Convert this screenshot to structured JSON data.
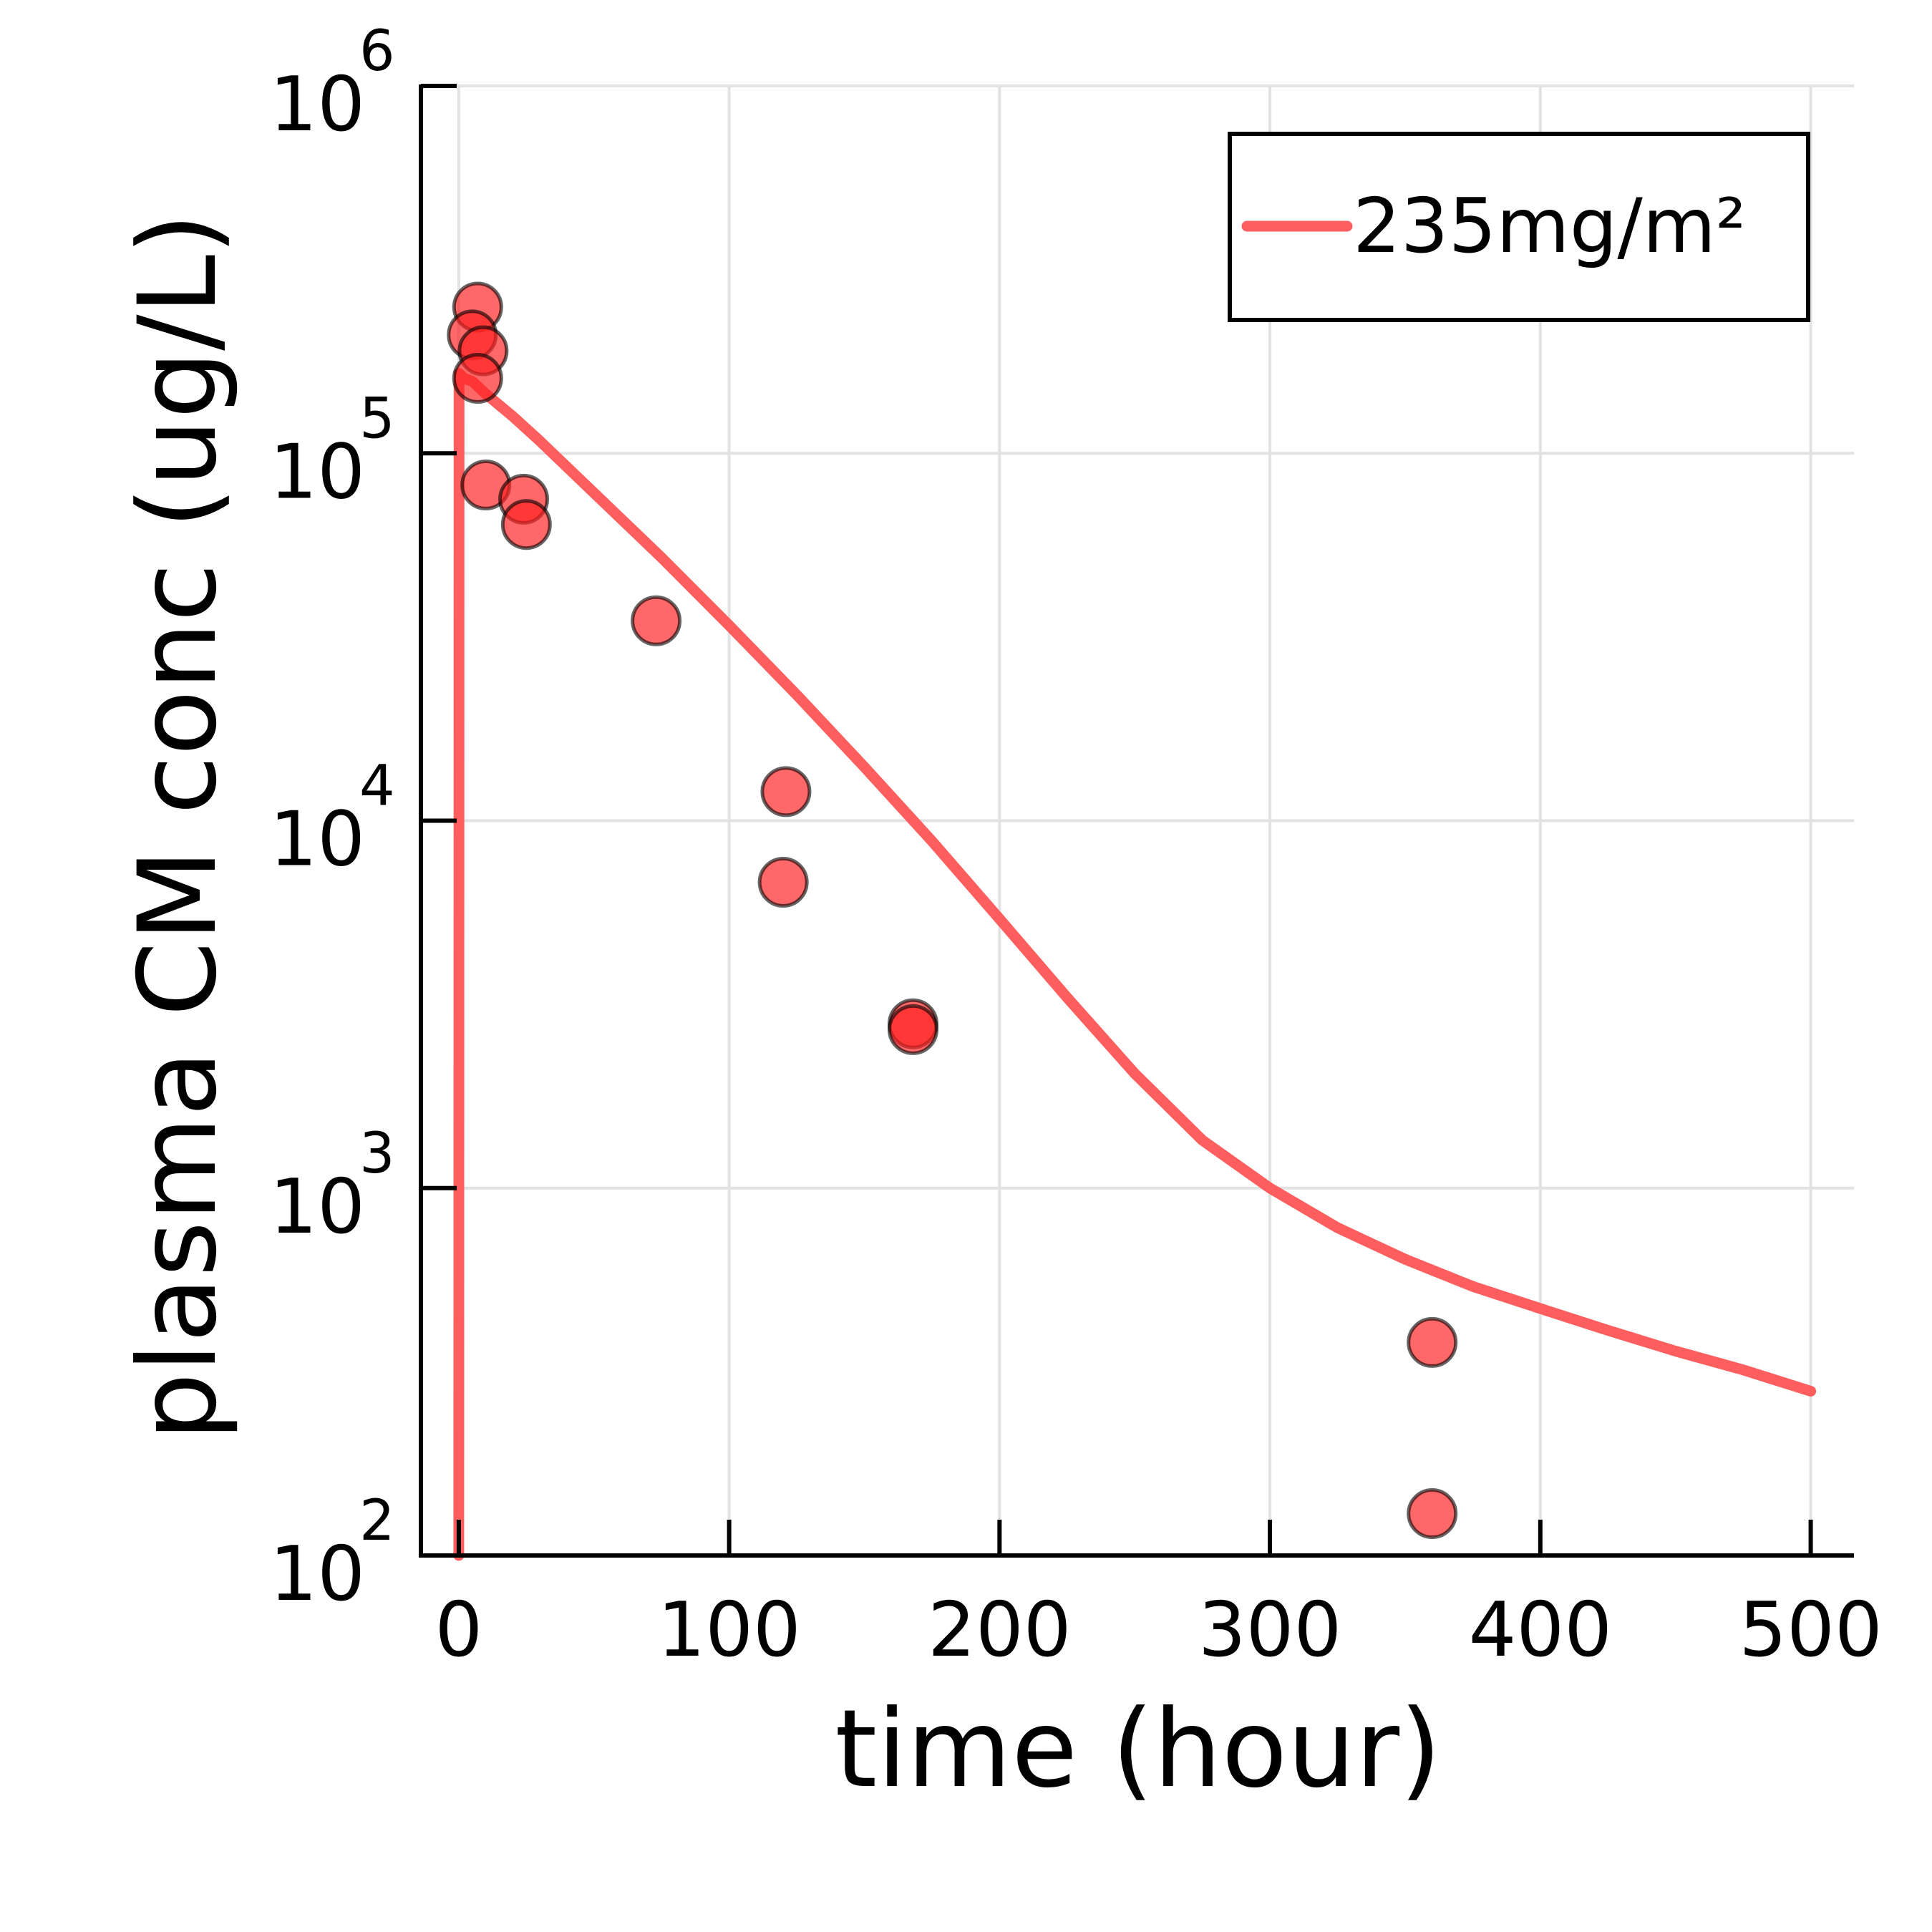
{
  "chart_data": {
    "type": "line",
    "xlabel": "time (hour)",
    "ylabel": "plasma CM conc (ug/L)",
    "xlim": [
      -14,
      516
    ],
    "ylim": [
      100,
      1000000
    ],
    "y_scale": "log10",
    "grid": true,
    "legend_position": "top-right",
    "x_ticks": [
      {
        "value": 0,
        "label": "0"
      },
      {
        "value": 100,
        "label": "100"
      },
      {
        "value": 200,
        "label": "200"
      },
      {
        "value": 300,
        "label": "300"
      },
      {
        "value": 400,
        "label": "400"
      },
      {
        "value": 500,
        "label": "500"
      }
    ],
    "y_ticks": [
      {
        "value": 100,
        "base": "10",
        "exp": "2"
      },
      {
        "value": 1000,
        "base": "10",
        "exp": "3"
      },
      {
        "value": 10000,
        "base": "10",
        "exp": "4"
      },
      {
        "value": 100000,
        "base": "10",
        "exp": "5"
      },
      {
        "value": 1000000,
        "base": "10",
        "exp": "6"
      }
    ],
    "series": [
      {
        "name": "235mg/m²",
        "kind": "line",
        "color": "#ff5e5e",
        "x": [
          0,
          0.1,
          2,
          5,
          10,
          20,
          30,
          50,
          75,
          100,
          125,
          150,
          175,
          200,
          225,
          250,
          275,
          300,
          325,
          350,
          375,
          400,
          425,
          450,
          475,
          500
        ],
        "y": [
          100,
          165000,
          160000,
          157000,
          145000,
          126000,
          108000,
          78000,
          52000,
          34000,
          22000,
          14000,
          8800,
          5400,
          3300,
          2050,
          1350,
          1000,
          780,
          640,
          540,
          470,
          410,
          360,
          320,
          280
        ]
      },
      {
        "name": "",
        "kind": "scatter",
        "color": "#ff2020",
        "x": [
          7,
          5,
          9,
          7,
          10,
          24,
          25,
          73,
          121,
          120,
          168,
          168,
          360,
          360
        ],
        "y": [
          250000,
          210000,
          190000,
          160000,
          82000,
          75000,
          64000,
          35000,
          12000,
          6800,
          2800,
          2700,
          380,
          130
        ]
      }
    ]
  },
  "colors": {
    "line": "#ff5e5e",
    "marker_fill": "#ff2020",
    "marker_edge": "#000000",
    "grid": "#e2e2e2",
    "axis": "#000000"
  }
}
